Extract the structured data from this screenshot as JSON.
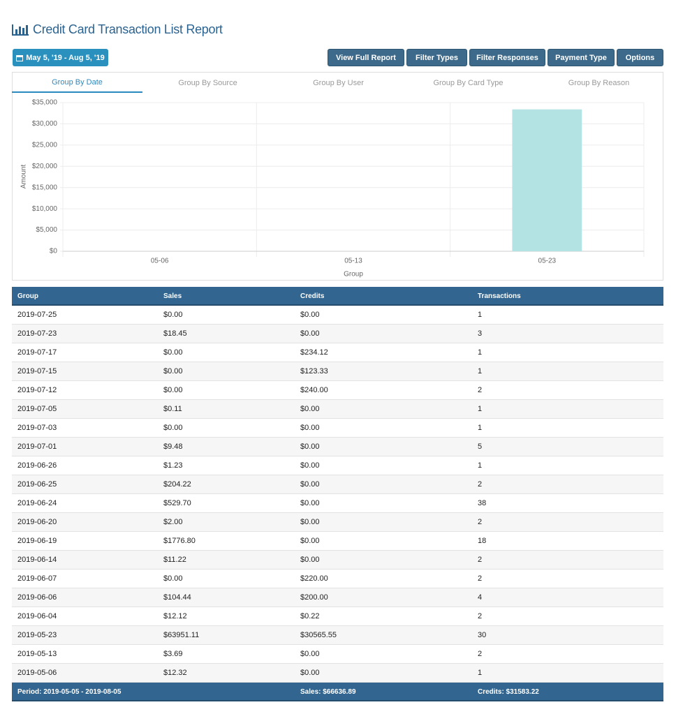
{
  "header": {
    "title": "Credit Card Transaction List Report"
  },
  "toolbar": {
    "date_range": "May 5, '19 - Aug 5, '19",
    "buttons": [
      "View Full Report",
      "Filter Types",
      "Filter Responses",
      "Payment Type",
      "Options"
    ]
  },
  "tabs": [
    "Group By Date",
    "Group By Source",
    "Group By User",
    "Group By Card Type",
    "Group By Reason"
  ],
  "chart_data": {
    "type": "bar",
    "categories": [
      "05-06",
      "05-13",
      "05-23"
    ],
    "values": [
      0,
      0,
      33400
    ],
    "color": "#b3e3e3",
    "x_label": "Group",
    "y_label": "Amount",
    "grid": true,
    "ylim": [
      0,
      35000
    ],
    "yticks": [
      {
        "value": 0,
        "label": "$0"
      },
      {
        "value": 5000,
        "label": "$5,000"
      },
      {
        "value": 10000,
        "label": "$10,000"
      },
      {
        "value": 15000,
        "label": "$15,000"
      },
      {
        "value": 20000,
        "label": "$20,000"
      },
      {
        "value": 25000,
        "label": "$25,000"
      },
      {
        "value": 30000,
        "label": "$30,000"
      },
      {
        "value": 35000,
        "label": "$35,000"
      }
    ]
  },
  "table": {
    "columns": [
      "Group",
      "Sales",
      "Credits",
      "Transactions"
    ],
    "rows": [
      [
        "2019-07-25",
        "$0.00",
        "$0.00",
        "1"
      ],
      [
        "2019-07-23",
        "$18.45",
        "$0.00",
        "3"
      ],
      [
        "2019-07-17",
        "$0.00",
        "$234.12",
        "1"
      ],
      [
        "2019-07-15",
        "$0.00",
        "$123.33",
        "1"
      ],
      [
        "2019-07-12",
        "$0.00",
        "$240.00",
        "2"
      ],
      [
        "2019-07-05",
        "$0.11",
        "$0.00",
        "1"
      ],
      [
        "2019-07-03",
        "$0.00",
        "$0.00",
        "1"
      ],
      [
        "2019-07-01",
        "$9.48",
        "$0.00",
        "5"
      ],
      [
        "2019-06-26",
        "$1.23",
        "$0.00",
        "1"
      ],
      [
        "2019-06-25",
        "$204.22",
        "$0.00",
        "2"
      ],
      [
        "2019-06-24",
        "$529.70",
        "$0.00",
        "38"
      ],
      [
        "2019-06-20",
        "$2.00",
        "$0.00",
        "2"
      ],
      [
        "2019-06-19",
        "$1776.80",
        "$0.00",
        "18"
      ],
      [
        "2019-06-14",
        "$11.22",
        "$0.00",
        "2"
      ],
      [
        "2019-06-07",
        "$0.00",
        "$220.00",
        "2"
      ],
      [
        "2019-06-06",
        "$104.44",
        "$200.00",
        "4"
      ],
      [
        "2019-06-04",
        "$12.12",
        "$0.22",
        "2"
      ],
      [
        "2019-05-23",
        "$63951.11",
        "$30565.55",
        "30"
      ],
      [
        "2019-05-13",
        "$3.69",
        "$0.00",
        "2"
      ],
      [
        "2019-05-06",
        "$12.32",
        "$0.00",
        "1"
      ]
    ],
    "footer": [
      "Period: 2019-05-05 - 2019-08-05",
      "Sales: $66636.89",
      "Credits: $31583.22"
    ]
  }
}
